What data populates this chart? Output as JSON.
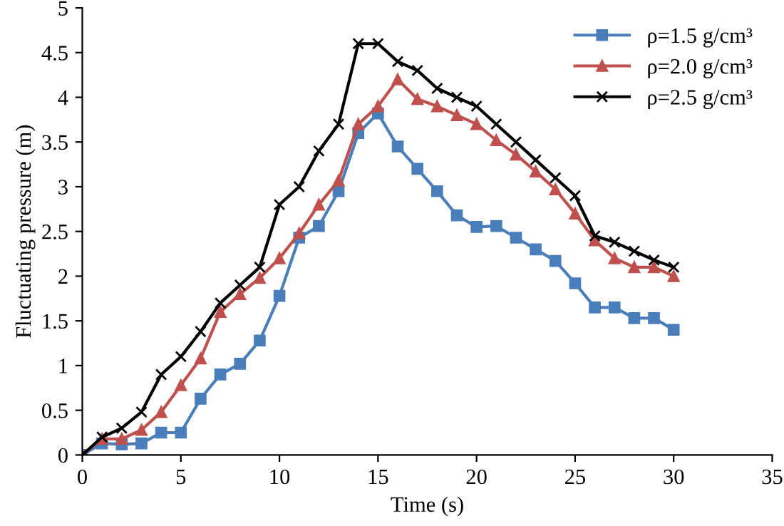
{
  "chart_data": {
    "type": "line",
    "xlabel": "Time (s)",
    "ylabel": "Fluctuating pressure (m)",
    "x": [
      0,
      1,
      2,
      3,
      4,
      5,
      6,
      7,
      8,
      9,
      10,
      11,
      12,
      13,
      14,
      15,
      16,
      17,
      18,
      19,
      20,
      21,
      22,
      23,
      24,
      25,
      26,
      27,
      28,
      29,
      30
    ],
    "series": [
      {
        "name": "ρ=1.5 g/cm³",
        "color": "#4a7ebb",
        "marker": "square",
        "values": [
          0,
          0.13,
          0.12,
          0.13,
          0.25,
          0.25,
          0.63,
          0.9,
          1.02,
          1.28,
          1.78,
          2.43,
          2.56,
          2.95,
          3.6,
          3.82,
          3.45,
          3.2,
          2.95,
          2.68,
          2.55,
          2.56,
          2.43,
          2.3,
          2.17,
          1.92,
          1.65,
          1.65,
          1.53,
          1.53,
          1.4
        ]
      },
      {
        "name": "ρ=2.0 g/cm³",
        "color": "#c0504d",
        "marker": "triangle",
        "values": [
          0,
          0.18,
          0.18,
          0.28,
          0.48,
          0.78,
          1.08,
          1.6,
          1.8,
          1.98,
          2.2,
          2.48,
          2.8,
          3.07,
          3.7,
          3.9,
          4.2,
          3.98,
          3.9,
          3.8,
          3.7,
          3.52,
          3.36,
          3.17,
          2.97,
          2.7,
          2.4,
          2.2,
          2.1,
          2.1,
          2.0
        ]
      },
      {
        "name": "ρ=2.5 g/cm³",
        "color": "#000000",
        "marker": "cross",
        "values": [
          0,
          0.2,
          0.3,
          0.48,
          0.9,
          1.1,
          1.38,
          1.7,
          1.9,
          2.1,
          2.8,
          3.0,
          3.4,
          3.7,
          4.6,
          4.6,
          4.4,
          4.3,
          4.1,
          4.0,
          3.9,
          3.7,
          3.5,
          3.3,
          3.1,
          2.9,
          2.45,
          2.38,
          2.28,
          2.18,
          2.1
        ]
      }
    ],
    "xlim": [
      0,
      35
    ],
    "xticks": [
      0,
      5,
      10,
      15,
      20,
      25,
      30,
      35
    ],
    "ylim": [
      0,
      5
    ],
    "yticks": [
      0,
      0.5,
      1,
      1.5,
      2,
      2.5,
      3,
      3.5,
      4,
      4.5,
      5
    ],
    "grid": false,
    "legend": "top right",
    "line_style": "solid"
  }
}
